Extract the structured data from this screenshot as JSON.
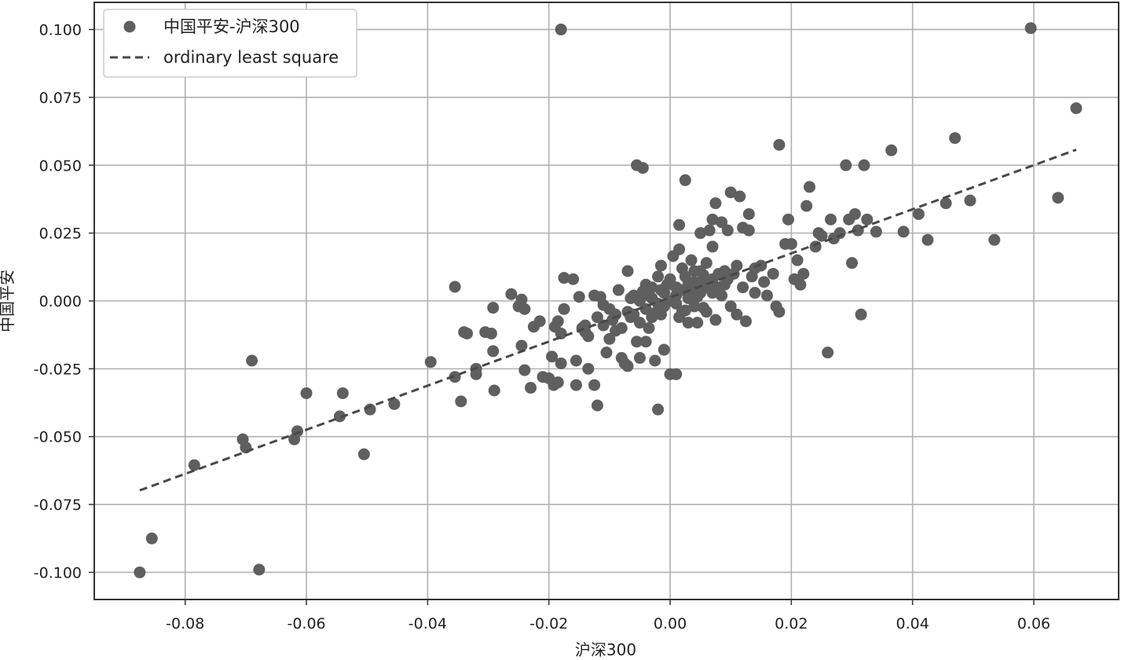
{
  "chart_data": {
    "type": "scatter",
    "xlabel": "沪深300",
    "ylabel": "中国平安",
    "xlim": [
      -0.095,
      0.074
    ],
    "ylim": [
      -0.11,
      0.11
    ],
    "x_ticks": [
      -0.08,
      -0.06,
      -0.04,
      -0.02,
      0.0,
      0.02,
      0.04,
      0.06
    ],
    "x_tick_labels": [
      "-0.08",
      "-0.06",
      "-0.04",
      "-0.02",
      "0.00",
      "0.02",
      "0.04",
      "0.06"
    ],
    "y_ticks": [
      0.1,
      0.075,
      0.05,
      0.025,
      0.0,
      -0.025,
      -0.05,
      -0.075,
      -0.1
    ],
    "y_tick_labels": [
      "0.100",
      "0.075",
      "0.050",
      "0.025",
      "0.000",
      "-0.025",
      "-0.050",
      "-0.075",
      "-0.100"
    ],
    "grid": true,
    "legend": {
      "placement": "top-left",
      "entries": [
        {
          "label": "中国平安-沪深300",
          "marker": "circle"
        },
        {
          "label": "ordinary least square",
          "marker": "dashed-line"
        }
      ]
    },
    "colors": {
      "points": "#5f5f5f",
      "line": "#484848",
      "grid": "#b0b0b0",
      "axes": "#333333"
    },
    "series": [
      {
        "name": "中国平安-沪深300",
        "type": "scatter",
        "points": [
          [
            -0.0875,
            -0.1
          ],
          [
            -0.0855,
            -0.0875
          ],
          [
            -0.0678,
            -0.099
          ],
          [
            -0.0785,
            -0.0605
          ],
          [
            -0.0705,
            -0.051
          ],
          [
            -0.07,
            -0.054
          ],
          [
            -0.069,
            -0.022
          ],
          [
            -0.062,
            -0.051
          ],
          [
            -0.0615,
            -0.048
          ],
          [
            -0.06,
            -0.034
          ],
          [
            -0.0545,
            -0.0425
          ],
          [
            -0.054,
            -0.034
          ],
          [
            -0.0505,
            -0.0565
          ],
          [
            -0.0495,
            -0.04
          ],
          [
            -0.0455,
            -0.038
          ],
          [
            -0.0395,
            -0.0225
          ],
          [
            -0.0355,
            0.0052
          ],
          [
            -0.0355,
            -0.028
          ],
          [
            -0.0345,
            -0.037
          ],
          [
            -0.034,
            -0.0115
          ],
          [
            -0.0335,
            -0.012
          ],
          [
            -0.032,
            -0.025
          ],
          [
            -0.032,
            -0.027
          ],
          [
            -0.0305,
            -0.0115
          ],
          [
            -0.0295,
            -0.012
          ],
          [
            -0.0292,
            -0.0185
          ],
          [
            -0.029,
            -0.033
          ],
          [
            -0.0292,
            -0.0025
          ],
          [
            -0.0262,
            0.0025
          ],
          [
            -0.025,
            -0.002
          ],
          [
            -0.0245,
            0.0005
          ],
          [
            -0.0245,
            -0.0165
          ],
          [
            -0.024,
            -0.003
          ],
          [
            -0.024,
            -0.0255
          ],
          [
            -0.023,
            -0.032
          ],
          [
            -0.0225,
            -0.0095
          ],
          [
            -0.0215,
            -0.0075
          ],
          [
            -0.021,
            -0.028
          ],
          [
            -0.02,
            -0.0285
          ],
          [
            -0.0195,
            -0.0205
          ],
          [
            -0.0192,
            -0.031
          ],
          [
            -0.019,
            -0.0095
          ],
          [
            -0.0185,
            -0.03
          ],
          [
            -0.0185,
            -0.0075
          ],
          [
            -0.018,
            0.1
          ],
          [
            -0.018,
            -0.023
          ],
          [
            -0.018,
            -0.012
          ],
          [
            -0.0175,
            0.0085
          ],
          [
            -0.0175,
            -0.003
          ],
          [
            -0.016,
            0.008
          ],
          [
            -0.0155,
            -0.022
          ],
          [
            -0.0155,
            -0.031
          ],
          [
            -0.015,
            0.0015
          ],
          [
            -0.0145,
            -0.01
          ],
          [
            -0.014,
            -0.0115
          ],
          [
            -0.0135,
            -0.013
          ],
          [
            -0.0135,
            -0.025
          ],
          [
            -0.0125,
            -0.031
          ],
          [
            -0.0125,
            0.002
          ],
          [
            -0.012,
            -0.0385
          ],
          [
            -0.0115,
            0.0015
          ],
          [
            -0.011,
            -0.0015
          ],
          [
            -0.0105,
            -0.019
          ],
          [
            -0.01,
            -0.014
          ],
          [
            -0.0095,
            -0.007
          ],
          [
            -0.009,
            -0.011
          ],
          [
            -0.0085,
            0.004
          ],
          [
            -0.008,
            -0.021
          ],
          [
            -0.0075,
            -0.023
          ],
          [
            -0.007,
            -0.024
          ],
          [
            -0.007,
            0.011
          ],
          [
            -0.0065,
            -0.006
          ],
          [
            -0.006,
            0.002
          ],
          [
            -0.0055,
            0.05
          ],
          [
            -0.0055,
            -0.015
          ],
          [
            -0.005,
            -0.021
          ],
          [
            -0.0045,
            0.049
          ],
          [
            -0.004,
            -0.015
          ],
          [
            -0.0035,
            -0.01
          ],
          [
            -0.003,
            0.001
          ],
          [
            -0.0025,
            -0.022
          ],
          [
            -0.002,
            -0.04
          ],
          [
            -0.0015,
            0.013
          ],
          [
            -0.0015,
            -0.005
          ],
          [
            -0.001,
            -0.018
          ],
          [
            -0.0005,
            0.006
          ],
          [
            0.0,
            -0.027
          ],
          [
            0.0005,
            0.0165
          ],
          [
            0.001,
            -0.027
          ],
          [
            0.001,
            0.005
          ],
          [
            0.0015,
            0.019
          ],
          [
            0.0015,
            0.028
          ],
          [
            0.002,
            -0.004
          ],
          [
            0.0025,
            0.009
          ],
          [
            0.0025,
            0.0445
          ],
          [
            0.003,
            -0.008
          ],
          [
            0.0035,
            0.015
          ],
          [
            0.004,
            0.003
          ],
          [
            0.004,
            0.011
          ],
          [
            0.0045,
            -0.008
          ],
          [
            0.005,
            0.007
          ],
          [
            0.005,
            0.025
          ],
          [
            0.0055,
            -0.0025
          ],
          [
            0.006,
            0.014
          ],
          [
            0.0065,
            0.026
          ],
          [
            0.007,
            0.03
          ],
          [
            0.007,
            0.02
          ],
          [
            0.0075,
            -0.007
          ],
          [
            0.0075,
            0.036
          ],
          [
            0.008,
            0.005
          ],
          [
            0.0085,
            0.029
          ],
          [
            0.009,
            0.011
          ],
          [
            0.0095,
            0.026
          ],
          [
            0.01,
            0.04
          ],
          [
            0.01,
            -0.002
          ],
          [
            0.0105,
            0.01
          ],
          [
            0.011,
            -0.005
          ],
          [
            0.0115,
            0.0385
          ],
          [
            0.012,
            0.027
          ],
          [
            0.0125,
            -0.0075
          ],
          [
            0.013,
            0.032
          ],
          [
            0.013,
            0.026
          ],
          [
            0.0135,
            0.009
          ],
          [
            0.014,
            0.003
          ],
          [
            0.015,
            0.013
          ],
          [
            0.0155,
            0.007
          ],
          [
            0.016,
            0.002
          ],
          [
            0.017,
            0.01
          ],
          [
            0.0175,
            -0.002
          ],
          [
            0.018,
            0.0575
          ],
          [
            0.018,
            -0.004
          ],
          [
            0.019,
            0.021
          ],
          [
            0.0195,
            0.03
          ],
          [
            0.02,
            0.021
          ],
          [
            0.0205,
            0.008
          ],
          [
            0.021,
            0.015
          ],
          [
            0.0215,
            0.006
          ],
          [
            0.022,
            0.01
          ],
          [
            0.0225,
            0.035
          ],
          [
            0.023,
            0.042
          ],
          [
            0.024,
            0.02
          ],
          [
            0.0245,
            0.025
          ],
          [
            0.025,
            0.024
          ],
          [
            0.026,
            -0.019
          ],
          [
            0.0265,
            0.03
          ],
          [
            0.027,
            0.023
          ],
          [
            0.028,
            0.025
          ],
          [
            0.029,
            0.05
          ],
          [
            0.0295,
            0.03
          ],
          [
            0.03,
            0.014
          ],
          [
            0.0305,
            0.032
          ],
          [
            0.031,
            0.026
          ],
          [
            0.0315,
            -0.005
          ],
          [
            0.032,
            0.05
          ],
          [
            0.0325,
            0.03
          ],
          [
            0.034,
            0.0255
          ],
          [
            0.0365,
            0.0555
          ],
          [
            0.0385,
            0.0255
          ],
          [
            0.041,
            0.032
          ],
          [
            0.0425,
            0.0225
          ],
          [
            0.0455,
            0.036
          ],
          [
            0.047,
            0.06
          ],
          [
            0.0495,
            0.037
          ],
          [
            0.0535,
            0.0225
          ],
          [
            0.0595,
            0.1005
          ],
          [
            0.064,
            0.038
          ],
          [
            0.067,
            0.071
          ],
          [
            -0.008,
            -0.01
          ],
          [
            -0.006,
            -0.005
          ],
          [
            -0.005,
            0.0
          ],
          [
            -0.004,
            -0.003
          ],
          [
            -0.003,
            0.005
          ],
          [
            -0.002,
            -0.001
          ],
          [
            -0.001,
            0.003
          ],
          [
            0.0,
            0.0
          ],
          [
            0.001,
            0.002
          ],
          [
            0.002,
            0.004
          ],
          [
            0.003,
            0.006
          ],
          [
            0.004,
            0.007
          ],
          [
            0.005,
            0.003
          ],
          [
            0.006,
            0.005
          ],
          [
            0.007,
            0.008
          ],
          [
            0.008,
            0.01
          ],
          [
            -0.007,
            -0.004
          ],
          [
            -0.005,
            -0.008
          ],
          [
            -0.003,
            -0.006
          ],
          [
            -0.001,
            -0.002
          ],
          [
            0.001,
            -0.001
          ],
          [
            0.003,
            0.001
          ],
          [
            0.005,
            0.011
          ],
          [
            0.007,
            0.003
          ],
          [
            0.009,
            0.006
          ],
          [
            0.011,
            0.013
          ],
          [
            -0.009,
            -0.005
          ],
          [
            -0.011,
            -0.009
          ],
          [
            0.002,
            0.012
          ],
          [
            0.004,
            -0.002
          ],
          [
            -0.002,
            0.009
          ],
          [
            0.006,
            -0.004
          ],
          [
            -0.004,
            0.006
          ],
          [
            0.0,
            0.008
          ],
          [
            0.0015,
            -0.006
          ],
          [
            -0.0015,
            0.004
          ],
          [
            0.0035,
            0.0045
          ],
          [
            0.0045,
            0.0015
          ],
          [
            -0.0025,
            -0.0045
          ],
          [
            -0.0065,
            0.001
          ],
          [
            0.0085,
            0.002
          ],
          [
            0.0095,
            0.008
          ],
          [
            0.012,
            0.005
          ],
          [
            0.014,
            0.012
          ],
          [
            -0.01,
            -0.003
          ],
          [
            -0.012,
            -0.006
          ],
          [
            -0.014,
            -0.009
          ],
          [
            0.0025,
            -0.0035
          ],
          [
            -0.0035,
            0.002
          ],
          [
            0.0055,
            0.0095
          ],
          [
            -0.0045,
            0.0035
          ],
          [
            0.0065,
            0.0065
          ]
        ]
      },
      {
        "name": "ordinary least square",
        "type": "line",
        "style": "dashed",
        "x": [
          -0.0875,
          0.067
        ],
        "y": [
          -0.0698,
          0.0557
        ]
      }
    ]
  }
}
